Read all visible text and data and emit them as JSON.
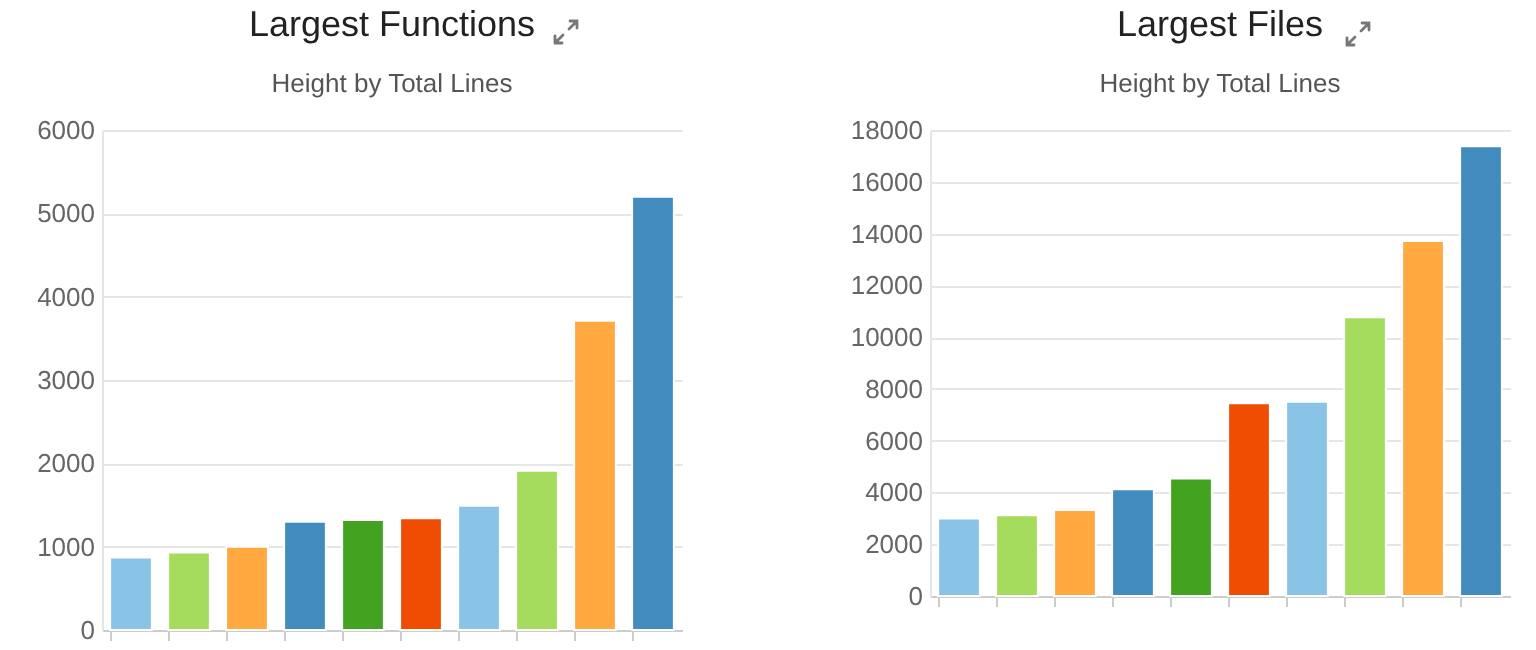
{
  "chart_data": [
    {
      "type": "bar",
      "title": "Largest Functions",
      "subtitle": "Height by Total Lines",
      "categories": [
        null,
        null,
        null,
        null,
        null,
        null,
        null,
        null,
        null,
        null
      ],
      "values": [
        870,
        930,
        1000,
        1300,
        1320,
        1340,
        1490,
        1910,
        3710,
        5200
      ],
      "colors": [
        "#89c4e7",
        "#a5dc5e",
        "#ffa940",
        "#418bbe",
        "#42a321",
        "#f04c02",
        "#89c4e7",
        "#a5dc5e",
        "#ffa940",
        "#418bbe"
      ],
      "ylim": [
        0,
        6000
      ],
      "yticks": [
        0,
        1000,
        2000,
        3000,
        4000,
        5000,
        6000
      ],
      "grid": "y"
    },
    {
      "type": "bar",
      "title": "Largest Files",
      "subtitle": "Height by Total Lines",
      "categories": [
        null,
        null,
        null,
        null,
        null,
        null,
        null,
        null,
        null,
        null
      ],
      "values": [
        2990,
        3120,
        3320,
        4120,
        4540,
        7450,
        7500,
        10770,
        13710,
        17370
      ],
      "colors": [
        "#89c4e7",
        "#a5dc5e",
        "#ffa940",
        "#418bbe",
        "#42a321",
        "#f04c02",
        "#89c4e7",
        "#a5dc5e",
        "#ffa940",
        "#418bbe"
      ],
      "ylim": [
        0,
        18000
      ],
      "yticks": [
        0,
        2000,
        4000,
        6000,
        8000,
        10000,
        12000,
        14000,
        16000,
        18000
      ],
      "grid": "y"
    }
  ]
}
